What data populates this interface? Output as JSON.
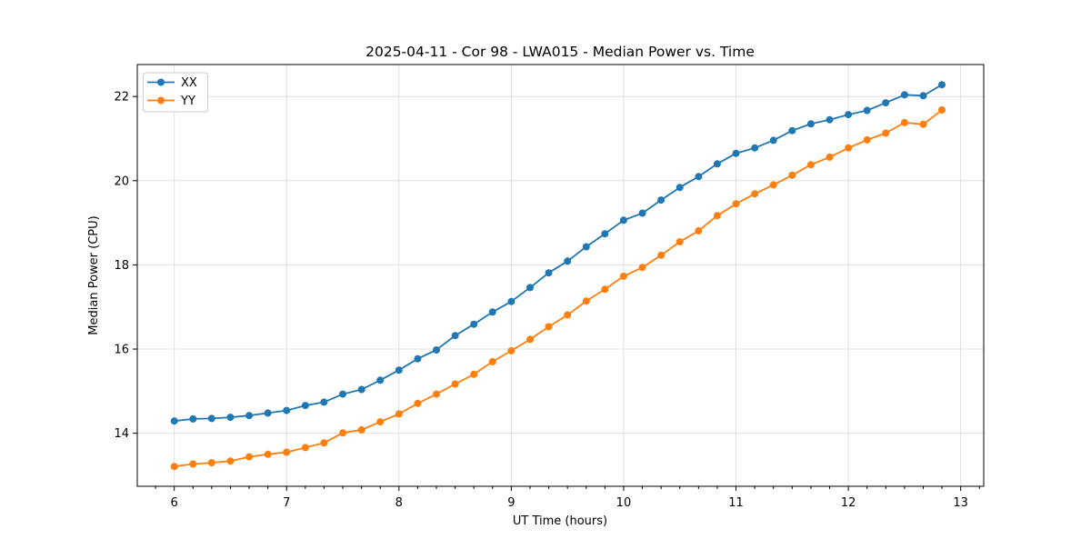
{
  "chart_data": {
    "type": "line",
    "title": "2025-04-11 - Cor 98 - LWA015 - Median Power vs. Time",
    "xlabel": "UT Time (hours)",
    "ylabel": "Median Power (CPU)",
    "xlim": [
      5.671,
      13.205
    ],
    "ylim": [
      12.74,
      22.76
    ],
    "x_ticks": [
      6,
      7,
      8,
      9,
      10,
      11,
      12,
      13
    ],
    "x_tick_labels": [
      "6",
      "7",
      "8",
      "9",
      "10",
      "11",
      "12",
      "13"
    ],
    "y_ticks": [
      14,
      16,
      18,
      20,
      22
    ],
    "y_tick_labels": [
      "14",
      "16",
      "18",
      "20",
      "22"
    ],
    "x_minor_step": 0.16667,
    "grid": true,
    "grid_color": "#e0e0e0",
    "spine_color": "#000000",
    "legend_position": "upper-left",
    "x": [
      6.0,
      6.167,
      6.333,
      6.5,
      6.667,
      6.833,
      7.0,
      7.167,
      7.333,
      7.5,
      7.667,
      7.833,
      8.0,
      8.167,
      8.333,
      8.5,
      8.667,
      8.833,
      9.0,
      9.167,
      9.333,
      9.5,
      9.667,
      9.833,
      10.0,
      10.167,
      10.333,
      10.5,
      10.667,
      10.833,
      11.0,
      11.167,
      11.333,
      11.5,
      11.667,
      11.833,
      12.0,
      12.167,
      12.333,
      12.5,
      12.667,
      12.833
    ],
    "series": [
      {
        "name": "XX",
        "color": "#1f77b4",
        "values": [
          14.29,
          14.34,
          14.35,
          14.38,
          14.42,
          14.48,
          14.54,
          14.66,
          14.74,
          14.93,
          15.04,
          15.26,
          15.5,
          15.77,
          15.98,
          16.32,
          16.59,
          16.88,
          17.13,
          17.46,
          17.81,
          18.09,
          18.43,
          18.74,
          19.06,
          19.23,
          19.54,
          19.84,
          20.1,
          20.4,
          20.65,
          20.78,
          20.96,
          21.19,
          21.35,
          21.45,
          21.57,
          21.67,
          21.85,
          22.04,
          22.02,
          22.28
        ]
      },
      {
        "name": "YY",
        "color": "#ff7f0e",
        "values": [
          13.21,
          13.27,
          13.3,
          13.34,
          13.44,
          13.5,
          13.55,
          13.66,
          13.77,
          14.01,
          14.08,
          14.27,
          14.46,
          14.71,
          14.93,
          15.17,
          15.4,
          15.7,
          15.96,
          16.23,
          16.53,
          16.81,
          17.14,
          17.42,
          17.73,
          17.94,
          18.23,
          18.55,
          18.81,
          19.17,
          19.45,
          19.69,
          19.9,
          20.13,
          20.38,
          20.56,
          20.78,
          20.97,
          21.13,
          21.38,
          21.34,
          21.68
        ]
      }
    ]
  }
}
